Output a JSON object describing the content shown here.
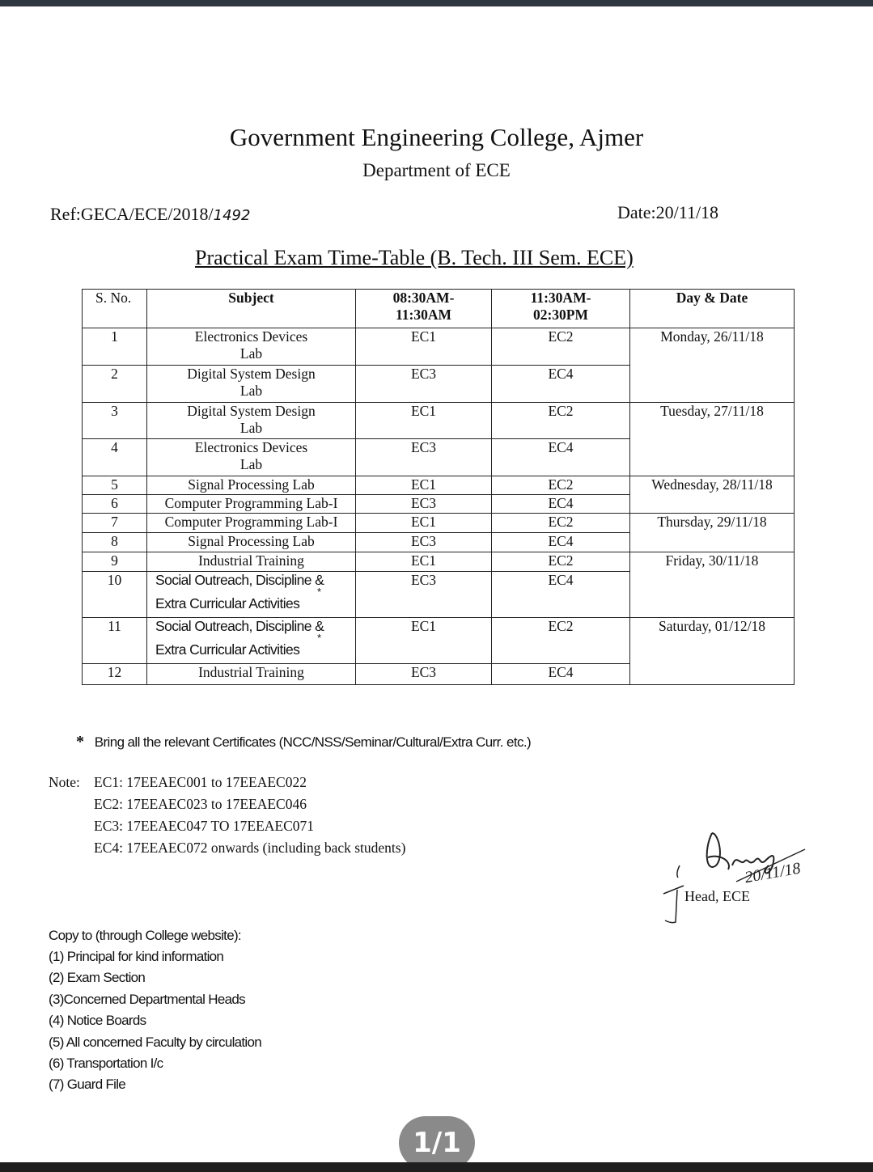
{
  "header": {
    "college": "Government Engineering College, Ajmer",
    "department": "Department of ECE",
    "ref": "Ref:GECA/ECE/2018/",
    "ref_handwritten": "1492",
    "date": "Date:20/11/18",
    "title": "Practical Exam Time-Table (B. Tech. III Sem. ECE)"
  },
  "table": {
    "columns": [
      "S. No.",
      "Subject",
      "08:30AM-\n11:30AM",
      "11:30AM-\n02:30PM",
      "Day & Date"
    ],
    "rows": [
      {
        "sno": "1",
        "subject": "Electronics Devices\nLab",
        "slot1": "EC1",
        "slot2": "EC2",
        "day": "Monday, 26/11/18",
        "span": 2
      },
      {
        "sno": "2",
        "subject": "Digital System Design\nLab",
        "slot1": "EC3",
        "slot2": "EC4"
      },
      {
        "sno": "3",
        "subject": "Digital System Design\nLab",
        "slot1": "EC1",
        "slot2": "EC2",
        "day": "Tuesday, 27/11/18",
        "span": 2
      },
      {
        "sno": "4",
        "subject": "Electronics Devices\nLab",
        "slot1": "EC3",
        "slot2": "EC4"
      },
      {
        "sno": "5",
        "subject": "Signal Processing Lab",
        "slot1": "EC1",
        "slot2": "EC2",
        "day": "Wednesday, 28/11/18",
        "span": 2
      },
      {
        "sno": "6",
        "subject": "Computer Programming Lab-I",
        "slot1": "EC3",
        "slot2": "EC4"
      },
      {
        "sno": "7",
        "subject": "Computer Programming Lab-I",
        "slot1": "EC1",
        "slot2": "EC2",
        "day": "Thursday, 29/11/18",
        "span": 2
      },
      {
        "sno": "8",
        "subject": "Signal Processing Lab",
        "slot1": "EC3",
        "slot2": "EC4"
      },
      {
        "sno": "9",
        "subject": "Industrial Training",
        "slot1": "EC1",
        "slot2": "EC2",
        "day": "Friday, 30/11/18",
        "span": 2
      },
      {
        "sno": "10",
        "subject": "Social Outreach, Discipline &\nExtra Curricular Activities",
        "star": "*",
        "slot1": "EC3",
        "slot2": "EC4"
      },
      {
        "sno": "11",
        "subject": "Social Outreach, Discipline &\nExtra Curricular Activities",
        "star": "*",
        "slot1": "EC1",
        "slot2": "EC2",
        "day": "Saturday, 01/12/18",
        "span": 2
      },
      {
        "sno": "12",
        "subject": "Industrial Training",
        "slot1": "EC3",
        "slot2": "EC4"
      }
    ]
  },
  "footnote": {
    "mark": "*",
    "text": "Bring all the relevant Certificates (NCC/NSS/Seminar/Cultural/Extra Curr. etc.)"
  },
  "notes": {
    "label": "Note:",
    "items": [
      "EC1:  17EEAEC001 to 17EEAEC022",
      "EC2: 17EEAEC023 to 17EEAEC046",
      "EC3: 17EEAEC047 TO 17EEAEC071",
      "EC4: 17EEAEC072 onwards (including back students)"
    ]
  },
  "signature": {
    "signed_name": "Brars",
    "signed_date": "20/11/18",
    "title": "Head, ECE"
  },
  "copy_to": {
    "heading": "Copy to (through College website):",
    "items": [
      "(1) Principal for kind information",
      "(2) Exam Section",
      "(3)Concerned Departmental Heads",
      "(4) Notice Boards",
      "(5) All concerned Faculty by circulation",
      "(6) Transportation I/c",
      "(7) Guard File"
    ]
  },
  "viewer": {
    "page_indicator": "1/1"
  }
}
